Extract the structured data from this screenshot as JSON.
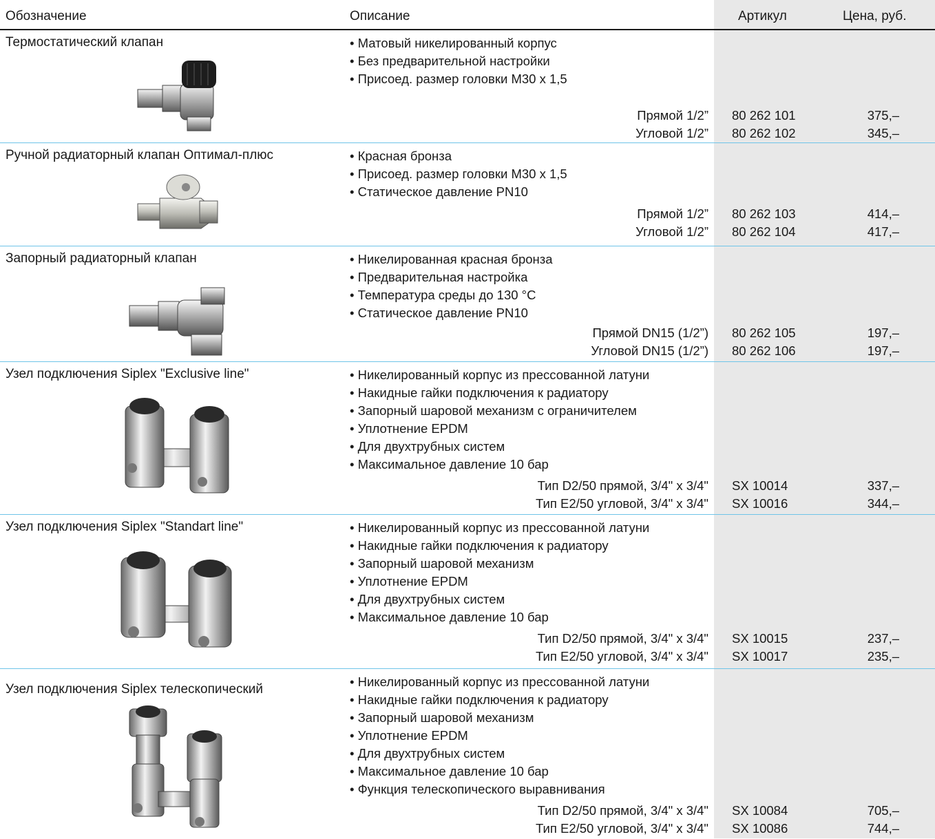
{
  "header": {
    "col_designation": "Обозначение",
    "col_description": "Описание",
    "col_article": "Артикул",
    "col_price": "Цена, руб."
  },
  "products": [
    {
      "name": "Термостатический клапан",
      "image_icon": "thermostatic-valve-photo",
      "bullets": [
        "• Матовый никелированный корпус",
        "• Без предварительной настройки",
        "• Присоед. размер головки М30 х 1,5"
      ],
      "variants": [
        {
          "label": "Прямой 1/2”",
          "article": "80 262 101",
          "price": "375,–"
        },
        {
          "label": "Угловой 1/2”",
          "article": "80 262 102",
          "price": "345,–"
        }
      ]
    },
    {
      "name": "Ручной радиаторный клапан Оптимал-плюс",
      "image_icon": "manual-valve-photo",
      "bullets": [
        "• Красная бронза",
        "• Присоед. размер головки М30 х 1,5",
        "• Статическое давление PN10"
      ],
      "variants": [
        {
          "label": "Прямой 1/2”",
          "article": "80 262 103",
          "price": "414,–"
        },
        {
          "label": "Угловой 1/2”",
          "article": "80 262 104",
          "price": "417,–"
        }
      ]
    },
    {
      "name": "Запорный радиаторный клапан",
      "image_icon": "shutoff-valve-photo",
      "bullets": [
        "• Никелированная красная бронза",
        "• Предварительная настройка",
        "• Температура среды до 130 °С",
        "• Статическое давление PN10"
      ],
      "variants": [
        {
          "label": "Прямой DN15 (1/2”)",
          "article": "80 262 105",
          "price": "197,–"
        },
        {
          "label": "Угловой DN15 (1/2”)",
          "article": "80 262 106",
          "price": "197,–"
        }
      ]
    },
    {
      "name": "Узел подключения Siplex \"Exclusive line\"",
      "image_icon": "siplex-exclusive-photo",
      "bullets": [
        "• Никелированный корпус из прессованной латуни",
        "• Накидные гайки подключения к радиатору",
        "• Запорный шаровой механизм с ограничителем",
        "• Уплотнение EPDM",
        "• Для двухтрубных систем",
        "• Максимальное давление 10 бар"
      ],
      "variants": [
        {
          "label": "Тип D2/50 прямой, 3/4\" x 3/4\"",
          "article": "SX 10014",
          "price": "337,–"
        },
        {
          "label": "Тип E2/50 угловой, 3/4\" x 3/4\"",
          "article": "SX 10016",
          "price": "344,–"
        }
      ]
    },
    {
      "name": "Узел подключения Siplex \"Standart line\"",
      "image_icon": "siplex-standart-photo",
      "bullets": [
        "• Никелированный корпус из прессованной латуни",
        "• Накидные гайки подключения к радиатору",
        "• Запорный шаровой механизм",
        "• Уплотнение EPDM",
        "• Для двухтрубных систем",
        "• Максимальное давление 10 бар"
      ],
      "variants": [
        {
          "label": "Тип D2/50 прямой, 3/4\" x 3/4\"",
          "article": "SX 10015",
          "price": "237,–"
        },
        {
          "label": "Тип E2/50 угловой, 3/4\" x 3/4\"",
          "article": "SX 10017",
          "price": "235,–"
        }
      ]
    },
    {
      "name": "Узел подключения Siplex телескопический",
      "image_icon": "siplex-telescopic-photo",
      "bullets": [
        "• Никелированный корпус из прессованной латуни",
        "• Накидные гайки подключения к радиатору",
        "• Запорный шаровой механизм",
        "• Уплотнение EPDM",
        "• Для двухтрубных систем",
        "• Максимальное давление 10 бар",
        "• Функция телескопического выравнивания"
      ],
      "variants": [
        {
          "label": "Тип D2/50 прямой, 3/4\" x 3/4\"",
          "article": "SX 10084",
          "price": "705,–"
        },
        {
          "label": "Тип E2/50 угловой, 3/4\" x 3/4\"",
          "article": "SX 10086",
          "price": "744,–"
        }
      ]
    }
  ]
}
